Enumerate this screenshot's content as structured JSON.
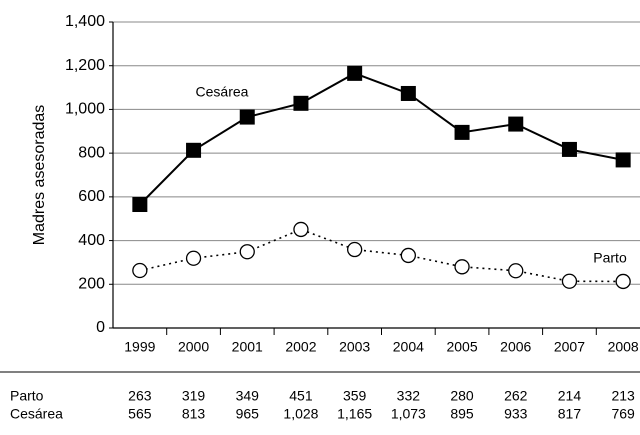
{
  "chart_data": {
    "type": "line",
    "y_label": "Madres asesoradas",
    "categories": [
      "1999",
      "2000",
      "2001",
      "2002",
      "2003",
      "2004",
      "2005",
      "2006",
      "2007",
      "2008"
    ],
    "series": [
      {
        "name": "Cesárea",
        "color": "#000000",
        "marker": "square",
        "line_style": "solid",
        "values": [
          565,
          813,
          965,
          1028,
          1165,
          1073,
          895,
          933,
          817,
          769
        ],
        "value_labels": [
          "565",
          "813",
          "965",
          "1,028",
          "1,165",
          "1,073",
          "895",
          "933",
          "817",
          "769"
        ]
      },
      {
        "name": "Parto",
        "color": "#000000",
        "marker": "circle",
        "line_style": "dotted",
        "values": [
          263,
          319,
          349,
          451,
          359,
          332,
          280,
          262,
          214,
          213
        ]
      }
    ],
    "ylim": [
      0,
      1400
    ],
    "yticks": [
      0,
      {
        "value": 200,
        "label": "200"
      },
      {
        "value": 400,
        "label": "400"
      },
      {
        "value": 600,
        "label": "600"
      },
      {
        "value": 800,
        "label": "800"
      },
      {
        "value": 1000,
        "label": "1,000"
      },
      {
        "value": 1200,
        "label": "1,200"
      },
      {
        "value": 1400,
        "label": "1,400"
      }
    ],
    "grid": true
  }
}
